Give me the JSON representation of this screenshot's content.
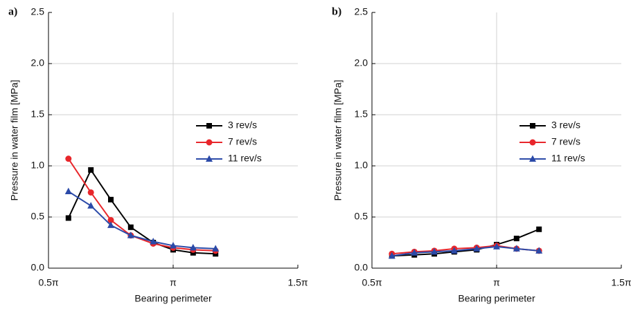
{
  "chart_data": [
    {
      "type": "line",
      "label": "a)",
      "x_label": "Bearing perimeter",
      "y_label": "Pressure in water film [MPa]",
      "xlim": [
        0.5,
        1.5
      ],
      "xticks": [
        {
          "value": 0.5,
          "label": "0.5π"
        },
        {
          "value": 1,
          "label": "π"
        },
        {
          "value": 1.5,
          "label": "1.5π"
        }
      ],
      "ylim": [
        0,
        2.5
      ],
      "yticks": [
        {
          "value": 0,
          "label": "0.0"
        },
        0.5,
        {
          "value": 1,
          "label": "1.0"
        },
        1.5,
        {
          "value": 2,
          "label": "2.0"
        },
        2.5
      ],
      "grid": true,
      "legend": "right",
      "x": [
        0.58,
        0.67,
        0.75,
        0.83,
        0.92,
        1.0,
        1.08,
        1.17
      ],
      "series": [
        {
          "name": "3 rev/s",
          "color": "#000000",
          "marker": "square",
          "values": [
            0.49,
            0.96,
            0.67,
            0.4,
            0.25,
            0.18,
            0.15,
            0.14
          ]
        },
        {
          "name": "7 rev/s",
          "color": "#e8262b",
          "marker": "circle",
          "values": [
            1.07,
            0.74,
            0.47,
            0.32,
            0.24,
            0.2,
            0.18,
            0.17
          ]
        },
        {
          "name": "11 rev/s",
          "color": "#2b4aa8",
          "marker": "triangle",
          "values": [
            0.75,
            0.61,
            0.42,
            0.32,
            0.26,
            0.22,
            0.2,
            0.19
          ]
        }
      ]
    },
    {
      "type": "line",
      "label": "b)",
      "x_label": "Bearing perimeter",
      "y_label": "Pressure in water film [MPa]",
      "xlim": [
        0.5,
        1.5
      ],
      "xticks": [
        {
          "value": 0.5,
          "label": "0.5π"
        },
        {
          "value": 1,
          "label": "π"
        },
        {
          "value": 1.5,
          "label": "1.5π"
        }
      ],
      "ylim": [
        0,
        2.5
      ],
      "yticks": [
        {
          "value": 0,
          "label": "0.0"
        },
        0.5,
        {
          "value": 1,
          "label": "1.0"
        },
        1.5,
        {
          "value": 2,
          "label": "2.0"
        },
        2.5
      ],
      "grid": true,
      "legend": "right",
      "x": [
        0.58,
        0.67,
        0.75,
        0.83,
        0.92,
        1.0,
        1.08,
        1.17
      ],
      "series": [
        {
          "name": "3 rev/s",
          "color": "#000000",
          "marker": "square",
          "values": [
            0.12,
            0.13,
            0.14,
            0.16,
            0.18,
            0.23,
            0.29,
            0.38
          ]
        },
        {
          "name": "7 rev/s",
          "color": "#e8262b",
          "marker": "circle",
          "values": [
            0.14,
            0.16,
            0.17,
            0.19,
            0.2,
            0.22,
            0.19,
            0.17
          ]
        },
        {
          "name": "11 rev/s",
          "color": "#2b4aa8",
          "marker": "triangle",
          "values": [
            0.12,
            0.15,
            0.16,
            0.17,
            0.19,
            0.21,
            0.19,
            0.17
          ]
        }
      ]
    }
  ]
}
